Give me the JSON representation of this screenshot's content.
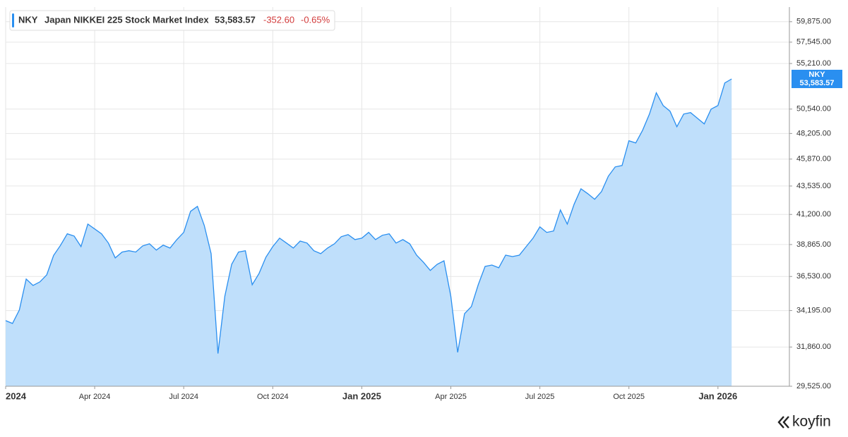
{
  "chart_data": {
    "type": "area",
    "symbol": "NKY",
    "title": "Japan NIKKEI 225 Stock Market Index",
    "price": "53,583.57",
    "change": "-352.60",
    "change_pct": "-0.65%",
    "brand": "koyfin",
    "log": true,
    "grid": true,
    "categories": [
      "2024",
      null,
      null,
      null,
      null,
      null,
      null,
      null,
      null,
      null,
      null,
      null,
      null,
      "Apr 2024",
      null,
      null,
      null,
      null,
      null,
      null,
      null,
      null,
      null,
      null,
      null,
      null,
      "Jul 2024",
      null,
      null,
      null,
      null,
      null,
      null,
      null,
      null,
      null,
      null,
      null,
      null,
      "Oct 2024",
      null,
      null,
      null,
      null,
      null,
      null,
      null,
      null,
      null,
      null,
      null,
      null,
      "Jan 2025",
      null,
      null,
      null,
      null,
      null,
      null,
      null,
      null,
      null,
      null,
      null,
      null,
      "Apr 2025",
      null,
      null,
      null,
      null,
      null,
      null,
      null,
      null,
      null,
      null,
      null,
      null,
      "Jul 2025",
      null,
      null,
      null,
      null,
      null,
      null,
      null,
      null,
      null,
      null,
      null,
      null,
      "Oct 2025",
      null,
      null,
      null,
      null,
      null,
      null,
      null,
      null,
      null,
      null,
      null,
      null,
      "Jan 2026",
      null,
      null
    ],
    "series": [
      {
        "name": "NKY",
        "color": "#2a8ff0",
        "fill": "#bfdffb",
        "values": [
          33530,
          33350,
          34230,
          36350,
          35900,
          36150,
          36650,
          38050,
          38800,
          39680,
          39510,
          38710,
          40440,
          40060,
          39680,
          38980,
          37870,
          38300,
          38400,
          38300,
          38760,
          38920,
          38450,
          38820,
          38600,
          39240,
          39790,
          41450,
          41850,
          40330,
          38180,
          31460,
          35150,
          37400,
          38300,
          38400,
          35950,
          36750,
          37920,
          38710,
          39350,
          38980,
          38600,
          39130,
          38980,
          38400,
          38180,
          38600,
          38920,
          39460,
          39620,
          39240,
          39350,
          39790,
          39240,
          39570,
          39680,
          38980,
          39240,
          38920,
          38070,
          37550,
          36960,
          37400,
          37660,
          35150,
          31530,
          33990,
          34460,
          35950,
          37250,
          37350,
          37150,
          38070,
          37970,
          38070,
          38710,
          39350,
          40220,
          39790,
          39900,
          41560,
          40440,
          42020,
          43300,
          42890,
          42430,
          43070,
          44380,
          45180,
          45300,
          47530,
          47330,
          48510,
          50060,
          52160,
          50890,
          50340,
          48840,
          50060,
          50200,
          49650,
          49110,
          50540,
          50890,
          53170,
          53583.57
        ]
      }
    ],
    "ylim": [
      29525,
      61600
    ],
    "yticks": [
      {
        "value": 29525,
        "label": "29,525.00"
      },
      {
        "value": 31860,
        "label": "31,860.00"
      },
      {
        "value": 34195,
        "label": "34,195.00"
      },
      {
        "value": 36530,
        "label": "36,530.00"
      },
      {
        "value": 38865,
        "label": "38,865.00"
      },
      {
        "value": 41200,
        "label": "41,200.00"
      },
      {
        "value": 43535,
        "label": "43,535.00"
      },
      {
        "value": 45870,
        "label": "45,870.00"
      },
      {
        "value": 48205,
        "label": "48,205.00"
      },
      {
        "value": 50540,
        "label": "50,540.00"
      },
      {
        "value": 55210,
        "label": "55,210.00"
      },
      {
        "value": 57545,
        "label": "57,545.00"
      },
      {
        "value": 59875,
        "label": "59,875.00"
      }
    ]
  }
}
